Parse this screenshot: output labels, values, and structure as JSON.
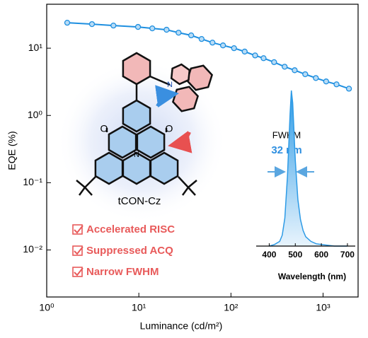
{
  "chart_data": [
    {
      "type": "line",
      "xlabel": "Luminance (cd/m²)",
      "ylabel": "EQE (%)",
      "log_x": true,
      "log_y": true,
      "xlim": [
        1,
        2400
      ],
      "ylim": [
        0.002,
        45
      ],
      "xticks": [
        {
          "value": 1,
          "label": "10⁰"
        },
        {
          "value": 10,
          "label": "10¹"
        },
        {
          "value": 100,
          "label": "10²"
        },
        {
          "value": 1000,
          "label": "10³"
        }
      ],
      "yticks": [
        {
          "value": 0.01,
          "label": "10⁻²"
        },
        {
          "value": 0.1,
          "label": "10⁻¹"
        },
        {
          "value": 1,
          "label": "10⁰"
        },
        {
          "value": 10,
          "label": "10¹"
        }
      ],
      "x": [
        1.67,
        3.1,
        5.3,
        9.8,
        14,
        20,
        27,
        37,
        48,
        63,
        82,
        108,
        141,
        183,
        226,
        294,
        383,
        492,
        640,
        835,
        1080,
        1400,
        1910
      ],
      "series": [
        {
          "color": "#1e8fe0",
          "values": [
            23.9,
            22.8,
            21.7,
            20.7,
            19.7,
            18.8,
            17.0,
            15.5,
            13.7,
            12.1,
            11.0,
            10.0,
            8.9,
            7.8,
            7.1,
            6.2,
            5.3,
            4.7,
            4.1,
            3.6,
            3.2,
            2.9,
            2.5
          ]
        }
      ],
      "annotations": {
        "molecule": "tCON-Cz",
        "features": [
          "Accelerated RISC",
          "Suppressed ACQ",
          "Narrow FWHM"
        ]
      }
    },
    {
      "type": "area",
      "xlabel": "Wavelength (nm)",
      "xlim": [
        350,
        730
      ],
      "ylim": [
        0,
        1
      ],
      "xticks": [
        400,
        500,
        600,
        700
      ],
      "x": [
        400,
        420,
        440,
        450,
        460,
        470,
        480,
        485,
        490,
        500,
        510,
        520,
        530,
        540,
        560,
        580,
        600,
        650,
        700
      ],
      "values": [
        0,
        0.01,
        0.03,
        0.07,
        0.18,
        0.45,
        0.85,
        1.0,
        0.92,
        0.55,
        0.3,
        0.17,
        0.1,
        0.06,
        0.03,
        0.015,
        0.01,
        0,
        0
      ],
      "color": "#2e9be6",
      "annotations": {
        "label": "FWHM",
        "fwhm": "32 nm"
      }
    }
  ]
}
